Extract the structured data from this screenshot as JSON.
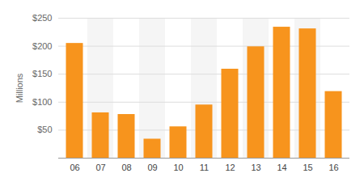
{
  "chart_data": {
    "type": "bar",
    "y_label": "Millions",
    "categories": [
      "06",
      "07",
      "08",
      "09",
      "10",
      "11",
      "12",
      "13",
      "14",
      "15",
      "16"
    ],
    "values": [
      205,
      81,
      78,
      34,
      56,
      95,
      159,
      199,
      234,
      231,
      119
    ],
    "color": "#f7941d",
    "ylim": [
      0,
      250
    ],
    "yticks": [
      {
        "value": 50,
        "label": "$50"
      },
      {
        "value": 100,
        "label": "$100"
      },
      {
        "value": 150,
        "label": "$150"
      },
      {
        "value": 200,
        "label": "$200"
      },
      {
        "value": 250,
        "label": "$250"
      }
    ],
    "grid": true
  }
}
